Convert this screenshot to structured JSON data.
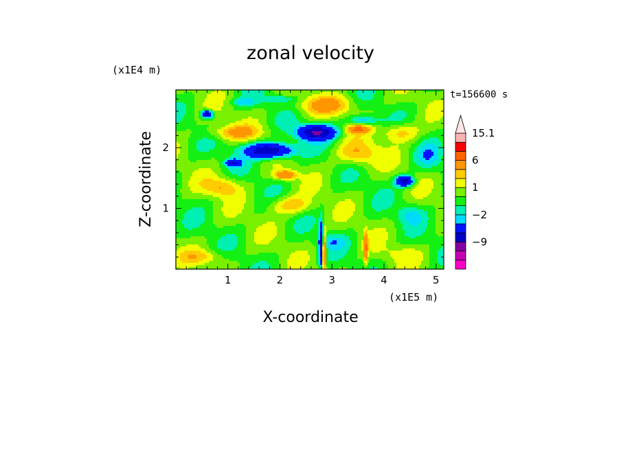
{
  "chart_data": {
    "type": "heatmap",
    "title": "zonal velocity",
    "xlabel": "X-coordinate",
    "ylabel": "Z-coordinate",
    "x_unit": "(x1E5 m)",
    "y_unit": "(x1E4 m)",
    "time_label": "t=156600 s",
    "xlim": [
      0,
      5.15
    ],
    "ylim": [
      0,
      2.95
    ],
    "x_ticks": [
      "1",
      "2",
      "3",
      "4",
      "5"
    ],
    "y_ticks": [
      "1",
      "2"
    ],
    "colorbar": {
      "levels": [
        -15,
        -12,
        -9,
        -6,
        -3,
        -2,
        -1,
        0,
        1,
        2,
        3,
        6,
        9,
        12,
        15.1
      ],
      "labels": [
        "15.1",
        "6",
        "1",
        "-2",
        "-9"
      ],
      "colors": [
        "#ff00c8",
        "#c800b4",
        "#8200a0",
        "#0000c8",
        "#0014ff",
        "#00dcff",
        "#00f0b4",
        "#14f014",
        "#78f000",
        "#f0ff00",
        "#ffcc00",
        "#ff9600",
        "#ff6400",
        "#ff0000",
        "#ffb4b4",
        "#ffe6e6"
      ],
      "extend": "max"
    },
    "field": {
      "grid": "approximate regional blobs of zonal velocity (data units)",
      "background_level": 0,
      "features": [
        {
          "x": 2.7,
          "z": 2.25,
          "rx": 0.35,
          "rz": 0.12,
          "v": -9
        },
        {
          "x": 1.8,
          "z": 1.95,
          "rx": 0.45,
          "rz": 0.12,
          "v": -9
        },
        {
          "x": 4.4,
          "z": 1.45,
          "rx": 0.15,
          "rz": 0.08,
          "v": -9
        },
        {
          "x": 0.6,
          "z": 2.55,
          "rx": 0.1,
          "rz": 0.06,
          "v": -9
        },
        {
          "x": 1.1,
          "z": 1.75,
          "rx": 0.15,
          "rz": 0.06,
          "v": -6
        },
        {
          "x": 3.6,
          "z": 2.45,
          "rx": 0.3,
          "rz": 0.07,
          "v": -3
        },
        {
          "x": 1.3,
          "z": 2.75,
          "rx": 0.25,
          "rz": 0.06,
          "v": -2
        },
        {
          "x": 2.0,
          "z": 2.8,
          "rx": 0.3,
          "rz": 0.06,
          "v": -2
        },
        {
          "x": 4.85,
          "z": 1.85,
          "rx": 0.25,
          "rz": 0.2,
          "v": -2
        },
        {
          "x": 4.5,
          "z": 0.9,
          "rx": 0.25,
          "rz": 0.15,
          "v": -2
        },
        {
          "x": 2.8,
          "z": 0.4,
          "rx": 0.04,
          "rz": 0.35,
          "v": -9
        },
        {
          "x": 3.0,
          "z": 0.45,
          "rx": 0.25,
          "rz": 0.12,
          "v": -2
        },
        {
          "x": 2.9,
          "z": 2.7,
          "rx": 0.55,
          "rz": 0.15,
          "v": 3
        },
        {
          "x": 1.1,
          "z": 2.25,
          "rx": 0.5,
          "rz": 0.12,
          "v": 3
        },
        {
          "x": 0.9,
          "z": 1.35,
          "rx": 0.35,
          "rz": 0.15,
          "v": 3
        },
        {
          "x": 3.5,
          "z": 1.9,
          "rx": 0.4,
          "rz": 0.2,
          "v": 3
        },
        {
          "x": 4.3,
          "z": 2.25,
          "rx": 0.35,
          "rz": 0.15,
          "v": 3
        },
        {
          "x": 2.2,
          "z": 1.05,
          "rx": 0.4,
          "rz": 0.15,
          "v": 3
        },
        {
          "x": 4.3,
          "z": 0.25,
          "rx": 0.45,
          "rz": 0.15,
          "v": 1
        },
        {
          "x": 0.5,
          "z": 0.2,
          "rx": 0.45,
          "rz": 0.12,
          "v": 2
        },
        {
          "x": 3.5,
          "z": 2.3,
          "rx": 0.2,
          "rz": 0.06,
          "v": 6
        },
        {
          "x": 2.1,
          "z": 1.55,
          "rx": 0.2,
          "rz": 0.07,
          "v": 6
        },
        {
          "x": 2.85,
          "z": 0.3,
          "rx": 0.04,
          "rz": 0.3,
          "v": 9
        },
        {
          "x": 3.65,
          "z": 0.35,
          "rx": 0.04,
          "rz": 0.25,
          "v": 6
        }
      ]
    }
  }
}
